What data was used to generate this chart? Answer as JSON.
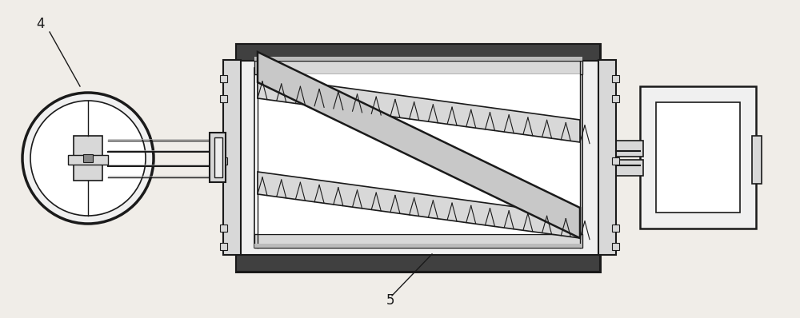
{
  "bg_color": "#f0ede8",
  "line_color": "#2a2a2a",
  "dark_color": "#1a1a1a",
  "mid_color": "#555555",
  "fill_white": "#ffffff",
  "fill_light": "#f0f0f0",
  "fill_gray": "#d8d8d8",
  "fill_dark_bar": "#404040",
  "label_4": "4",
  "label_5": "5",
  "figsize": [
    10.0,
    3.98
  ],
  "dpi": 100
}
